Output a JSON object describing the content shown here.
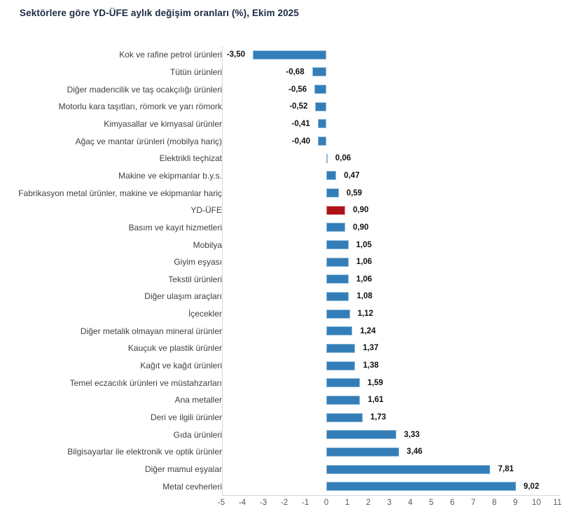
{
  "chart_data": {
    "type": "bar",
    "orientation": "horizontal",
    "title": "Sektörlere göre YD-ÜFE aylık değişim oranları (%), Ekim 2025",
    "categories": [
      "Kok ve rafine petrol ürünleri",
      "Tütün ürünleri",
      "Diğer madencilik ve taş ocakçılığı ürünleri",
      "Motorlu kara taşıtları, römork ve yarı römork",
      "Kimyasallar ve kimyasal ürünler",
      "Ağaç ve mantar ürünleri (mobilya hariç)",
      "Elektrikli teçhizat",
      "Makine ve ekipmanlar b.y.s.",
      "Fabrikasyon metal ürünler, makine ve ekipmanlar hariç",
      "YD-ÜFE",
      "Basım ve kayıt hizmetleri",
      "Mobilya",
      "Giyim eşyası",
      "Tekstil ürünleri",
      "Diğer ulaşım araçları",
      "İçecekler",
      "Diğer metalik olmayan mineral ürünler",
      "Kauçuk ve plastik ürünler",
      "Kağıt ve kağıt ürünleri",
      "Temel eczacılık ürünleri ve müstahzarları",
      "Ana metaller",
      "Deri ve ilgili ürünler",
      "Gıda ürünleri",
      "Bilgisayarlar ile elektronik ve optik ürünler",
      "Diğer mamul eşyalar",
      "Metal cevherleri"
    ],
    "values": [
      -3.5,
      -0.68,
      -0.56,
      -0.52,
      -0.41,
      -0.4,
      0.06,
      0.47,
      0.59,
      0.9,
      0.9,
      1.05,
      1.06,
      1.06,
      1.08,
      1.12,
      1.24,
      1.37,
      1.38,
      1.59,
      1.61,
      1.73,
      3.33,
      3.46,
      7.81,
      9.02
    ],
    "value_labels": [
      "-3,50",
      "-0,68",
      "-0,56",
      "-0,52",
      "-0,41",
      "-0,40",
      "0,06",
      "0,47",
      "0,59",
      "0,90",
      "0,90",
      "1,05",
      "1,06",
      "1,06",
      "1,08",
      "1,12",
      "1,24",
      "1,37",
      "1,38",
      "1,59",
      "1,61",
      "1,73",
      "3,33",
      "3,46",
      "7,81",
      "9,02"
    ],
    "highlight_index": 9,
    "highlight_category": "YD-ÜFE",
    "x_ticks": [
      -5,
      -4,
      -3,
      -2,
      -1,
      0,
      1,
      2,
      3,
      4,
      5,
      6,
      7,
      8,
      9,
      10,
      11
    ],
    "xlim": [
      -5,
      11
    ],
    "xlabel": "",
    "ylabel": "",
    "grid": false,
    "legend": false,
    "colors": {
      "bar": "#337eb8",
      "bar_border": "#8fb9da",
      "highlight_bar": "#b01116",
      "highlight_bar_border": "#d99a9c",
      "title_text": "#1b2a44",
      "category_text": "#404040",
      "value_text": "#111111",
      "tick_text": "#595959",
      "axis_line": "#d8d8d8"
    }
  }
}
